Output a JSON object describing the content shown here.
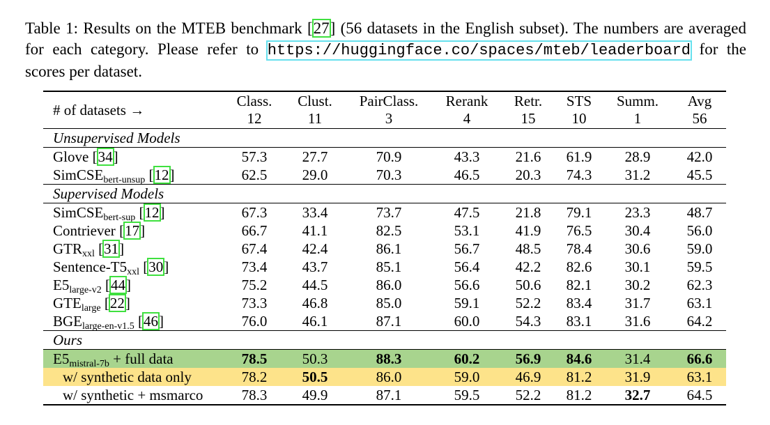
{
  "caption": {
    "part1": "Table 1: Results on the MTEB benchmark [",
    "cite": "27",
    "part2": "] (56 datasets in the English subset). The numbers are averaged for each category. Please refer to ",
    "url": "https://huggingface.co/spaces/mteb/leaderboard",
    "part3": " for the scores per dataset."
  },
  "table": {
    "header_label": "# of datasets →",
    "columns": [
      {
        "name": "Class.",
        "count": "12"
      },
      {
        "name": "Clust.",
        "count": "11"
      },
      {
        "name": "PairClass.",
        "count": "3"
      },
      {
        "name": "Rerank",
        "count": "4"
      },
      {
        "name": "Retr.",
        "count": "15"
      },
      {
        "name": "STS",
        "count": "10"
      },
      {
        "name": "Summ.",
        "count": "1"
      },
      {
        "name": "Avg",
        "count": "56"
      }
    ],
    "groups": {
      "unsupervised": "Unsupervised Models",
      "supervised": "Supervised Models",
      "ours": "Ours"
    },
    "rows": [
      {
        "name": "Glove",
        "sub": "",
        "cite": "34",
        "values": [
          "57.3",
          "27.7",
          "70.9",
          "43.3",
          "21.6",
          "61.9",
          "28.9",
          "42.0"
        ]
      },
      {
        "name": "SimCSE",
        "sub": "bert-unsup",
        "cite": "12",
        "values": [
          "62.5",
          "29.0",
          "70.3",
          "46.5",
          "20.3",
          "74.3",
          "31.2",
          "45.5"
        ]
      },
      {
        "name": "SimCSE",
        "sub": "bert-sup",
        "cite": "12",
        "values": [
          "67.3",
          "33.4",
          "73.7",
          "47.5",
          "21.8",
          "79.1",
          "23.3",
          "48.7"
        ]
      },
      {
        "name": "Contriever",
        "sub": "",
        "cite": "17",
        "values": [
          "66.7",
          "41.1",
          "82.5",
          "53.1",
          "41.9",
          "76.5",
          "30.4",
          "56.0"
        ]
      },
      {
        "name": "GTR",
        "sub": "xxl",
        "cite": "31",
        "values": [
          "67.4",
          "42.4",
          "86.1",
          "56.7",
          "48.5",
          "78.4",
          "30.6",
          "59.0"
        ]
      },
      {
        "name": "Sentence-T5",
        "sub": "xxl",
        "cite": "30",
        "values": [
          "73.4",
          "43.7",
          "85.1",
          "56.4",
          "42.2",
          "82.6",
          "30.1",
          "59.5"
        ]
      },
      {
        "name": "E5",
        "sub": "large-v2",
        "cite": "44",
        "values": [
          "75.2",
          "44.5",
          "86.0",
          "56.6",
          "50.6",
          "82.1",
          "30.2",
          "62.3"
        ]
      },
      {
        "name": "GTE",
        "sub": "large",
        "cite": "22",
        "values": [
          "73.3",
          "46.8",
          "85.0",
          "59.1",
          "52.2",
          "83.4",
          "31.7",
          "63.1"
        ]
      },
      {
        "name": "BGE",
        "sub": "large-en-v1.5",
        "cite": "46",
        "values": [
          "76.0",
          "46.1",
          "87.1",
          "60.0",
          "54.3",
          "83.1",
          "31.6",
          "64.2"
        ]
      },
      {
        "name": "E5",
        "sub": "mistral-7b",
        "suffix": " + full data",
        "values": [
          "78.5",
          "50.3",
          "88.3",
          "60.2",
          "56.9",
          "84.6",
          "31.4",
          "66.6"
        ]
      },
      {
        "name": "w/ synthetic data only",
        "values": [
          "78.2",
          "50.5",
          "86.0",
          "59.0",
          "46.9",
          "81.2",
          "31.9",
          "63.1"
        ]
      },
      {
        "name": "w/ synthetic + msmarco",
        "values": [
          "78.3",
          "49.9",
          "87.1",
          "59.5",
          "52.2",
          "81.2",
          "32.7",
          "64.5"
        ]
      }
    ],
    "highlight_colors": {
      "full_data": "#a8d48e",
      "synthetic_only": "#fde38a"
    }
  }
}
